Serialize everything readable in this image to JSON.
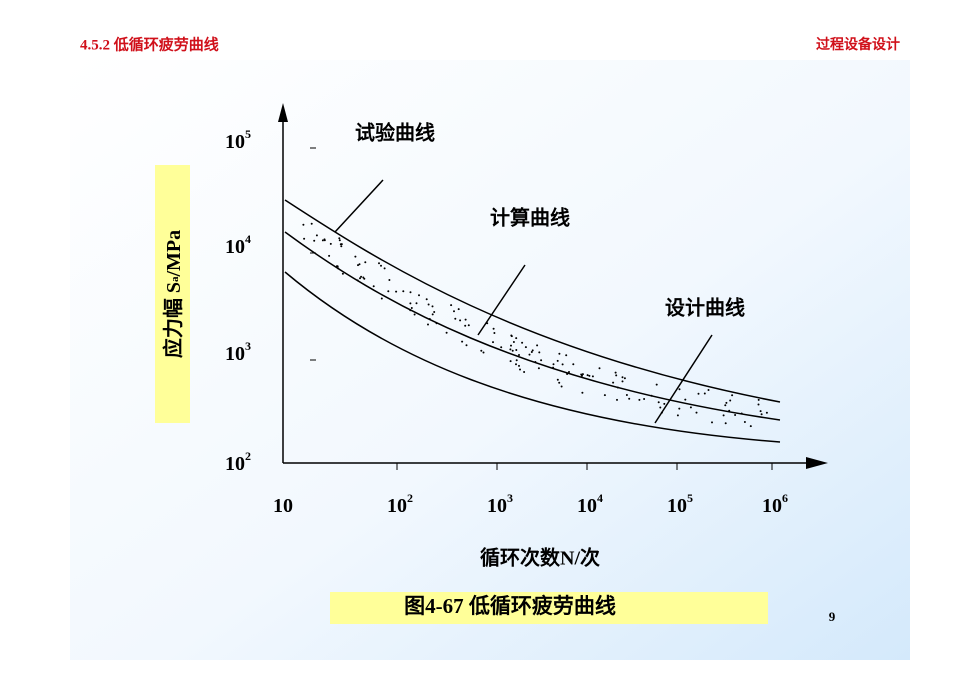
{
  "header": {
    "section": "4.5.2 低循环疲劳曲线",
    "course": "过程设备设计"
  },
  "figure": {
    "y_axis_label": {
      "main": "应力幅 S",
      "sub": "a",
      "rest": "/MPa"
    },
    "y_ticks": [
      {
        "base": "10",
        "exp": "5"
      },
      {
        "base": "10",
        "exp": "4"
      },
      {
        "base": "10",
        "exp": "3"
      },
      {
        "base": "10",
        "exp": "2"
      }
    ],
    "x_ticks": [
      {
        "base": "10"
      },
      {
        "base": "10",
        "exp": "2"
      },
      {
        "base": "10",
        "exp": "3"
      },
      {
        "base": "10",
        "exp": "4"
      },
      {
        "base": "10",
        "exp": "5"
      },
      {
        "base": "10",
        "exp": "6"
      }
    ],
    "x_axis_label": "循环次数N/次",
    "curve_labels": [
      "试验曲线",
      "计算曲线",
      "设计曲线"
    ],
    "caption": "图4-67 低循环疲劳曲线"
  },
  "page_number": "9"
}
